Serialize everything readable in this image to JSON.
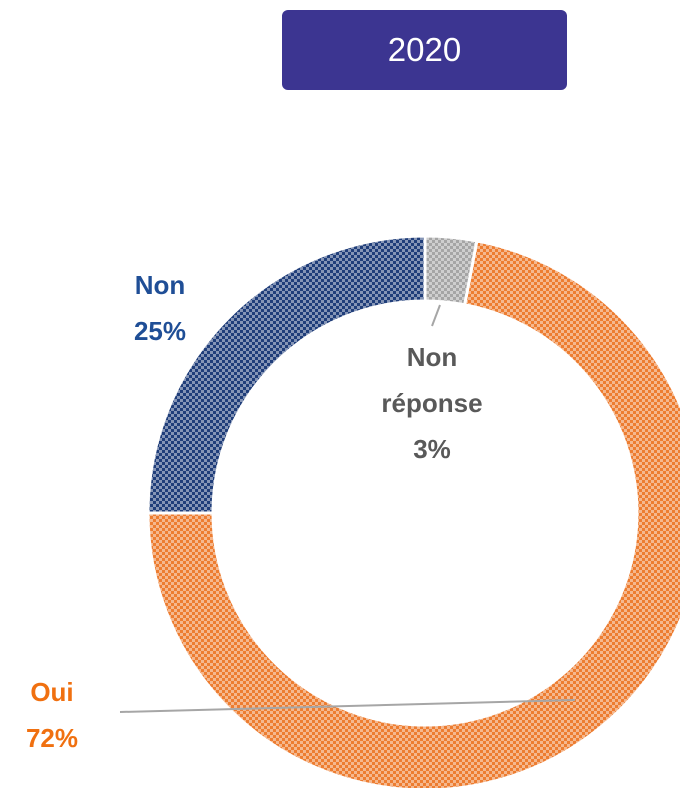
{
  "chart_data": {
    "type": "donut",
    "title": "2020",
    "categories": [
      "Non réponse",
      "Oui",
      "Non"
    ],
    "values": [
      3,
      72,
      25
    ],
    "value_labels": [
      "3%",
      "72%",
      "25%"
    ],
    "colors": [
      "#a5a5a5",
      "#ed7d31",
      "#203e7a"
    ],
    "label_colors": [
      "#595959",
      "#f07010",
      "#1f4e96"
    ]
  }
}
